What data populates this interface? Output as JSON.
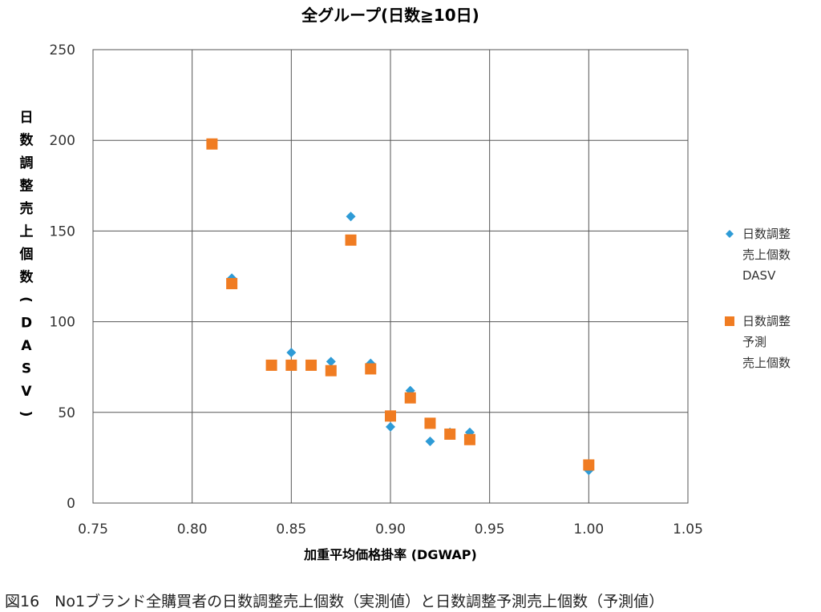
{
  "chart_data": {
    "type": "scatter",
    "title": "全グループ(日数≧10日)",
    "xlabel": "加重平均価格掛率 (DGWAP)",
    "ylabel": "日数調整売上個数(DASV)",
    "xlim": [
      0.75,
      1.05
    ],
    "ylim": [
      0,
      250
    ],
    "xticks": [
      "0.75",
      "0.80",
      "0.85",
      "0.90",
      "0.95",
      "1.00",
      "1.05"
    ],
    "yticks": [
      "0",
      "50",
      "100",
      "150",
      "200",
      "250"
    ],
    "grid": true,
    "legend_position": "right",
    "series": [
      {
        "name": "日数調整売上個数DASV",
        "legend_lines": [
          "日数調整",
          "売上個数",
          "DASV"
        ],
        "marker": "diamond",
        "color": "#2e9bd6",
        "points": [
          [
            0.81,
            198
          ],
          [
            0.82,
            124
          ],
          [
            0.84,
            76
          ],
          [
            0.85,
            83
          ],
          [
            0.86,
            76
          ],
          [
            0.87,
            78
          ],
          [
            0.88,
            158
          ],
          [
            0.89,
            77
          ],
          [
            0.9,
            42
          ],
          [
            0.91,
            62
          ],
          [
            0.92,
            34
          ],
          [
            0.93,
            39
          ],
          [
            0.94,
            39
          ],
          [
            1.0,
            18
          ]
        ]
      },
      {
        "name": "日数調整予測売上個数",
        "legend_lines": [
          "日数調整",
          "予測",
          "売上個数"
        ],
        "marker": "square",
        "color": "#f07c22",
        "points": [
          [
            0.81,
            198
          ],
          [
            0.82,
            121
          ],
          [
            0.84,
            76
          ],
          [
            0.85,
            76
          ],
          [
            0.86,
            76
          ],
          [
            0.87,
            73
          ],
          [
            0.88,
            145
          ],
          [
            0.89,
            74
          ],
          [
            0.9,
            48
          ],
          [
            0.91,
            58
          ],
          [
            0.92,
            44
          ],
          [
            0.93,
            38
          ],
          [
            0.94,
            35
          ],
          [
            1.0,
            21
          ]
        ]
      }
    ]
  },
  "caption": "図16　No1ブランド全購買者の日数調整売上個数（実測値）と日数調整予測売上個数（予測値）"
}
